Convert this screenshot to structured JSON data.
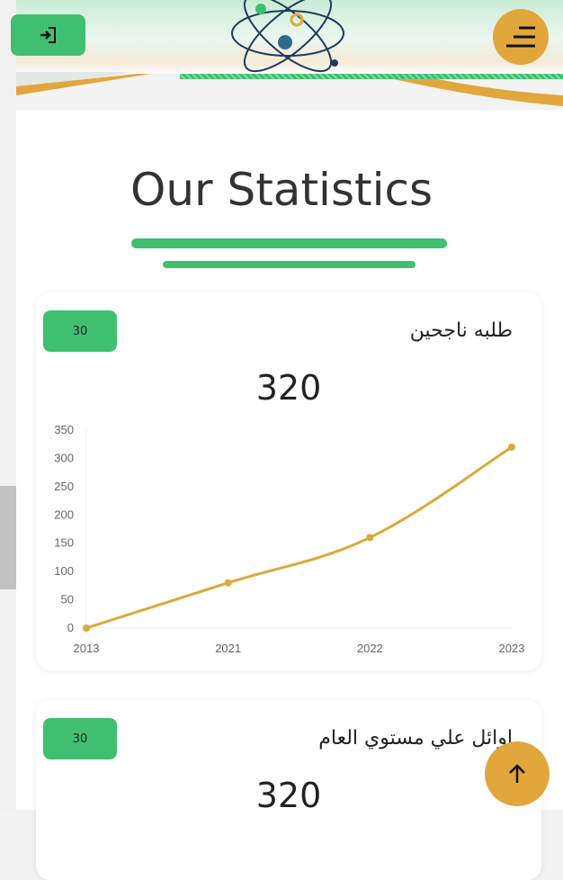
{
  "header": {
    "login_icon": "login-icon",
    "menu_icon": "menu-icon",
    "logo": "science-atom-logo"
  },
  "section": {
    "title": "Our Statistics"
  },
  "cards": [
    {
      "badge": "30",
      "title": "طلبه ناجحين",
      "value": "320"
    },
    {
      "badge": "30",
      "title": "اوائل علي مستوي العام",
      "value": "320"
    }
  ],
  "colors": {
    "accent_green": "#3fbf6f",
    "accent_gold": "#e2a73c",
    "line": "#dca83a"
  },
  "chart_data": {
    "type": "line",
    "categories": [
      "2013",
      "2021",
      "2022",
      "2023"
    ],
    "values": [
      0,
      80,
      160,
      320
    ],
    "ylim": [
      0,
      350
    ],
    "yticks": [
      0,
      50,
      100,
      150,
      200,
      250,
      300,
      350
    ],
    "grid": false
  },
  "fab": {
    "icon": "arrow-up-icon"
  }
}
